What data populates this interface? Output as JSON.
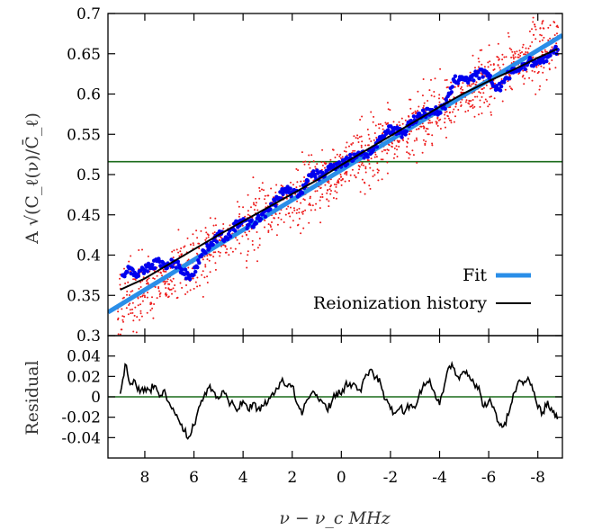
{
  "chart_data": [
    {
      "type": "scatter",
      "xlabel": "ν − ν_c  MHz",
      "ylabel": "A √(C_ℓ(ν)/C̄_ℓ)",
      "xlim": [
        9.5,
        -9.0
      ],
      "ylim": [
        0.3,
        0.7
      ],
      "x_ticks": [
        8,
        6,
        4,
        2,
        0,
        -2,
        -4,
        -6,
        -8
      ],
      "x_tick_labels": [
        "8",
        "6",
        "4",
        "2",
        "0",
        "-2",
        "-4",
        "-6",
        "-8"
      ],
      "y_ticks": [
        0.3,
        0.35,
        0.4,
        0.45,
        0.5,
        0.55,
        0.6,
        0.65,
        0.7
      ],
      "y_tick_labels": [
        "0.3",
        "0.35",
        "0.4",
        "0.45",
        "0.5",
        "0.55",
        "0.6",
        "0.65",
        "0.7"
      ],
      "horizontal_line": {
        "y": 0.516,
        "color": "#1a6b1a"
      },
      "legend": {
        "placement": "bottom-right",
        "entries": [
          "Fit",
          "Reionization history"
        ]
      },
      "series": [
        {
          "name": "Fit",
          "kind": "line",
          "color": "#2a8ee8",
          "x": [
            9.5,
            -9.0
          ],
          "y": [
            0.329,
            0.673
          ]
        },
        {
          "name": "Reionization history",
          "kind": "line",
          "color": "#000000",
          "x": [
            9.0,
            8.0,
            7.0,
            6.0,
            5.0,
            4.0,
            3.0,
            2.0,
            1.0,
            0.0,
            -1.0,
            -2.0,
            -3.0,
            -4.0,
            -5.0,
            -6.0,
            -7.0,
            -8.0,
            -8.8
          ],
          "y": [
            0.357,
            0.371,
            0.389,
            0.407,
            0.425,
            0.442,
            0.459,
            0.476,
            0.493,
            0.512,
            0.53,
            0.548,
            0.566,
            0.584,
            0.601,
            0.616,
            0.63,
            0.645,
            0.656
          ]
        },
        {
          "name": "",
          "kind": "points",
          "color": "#0000ee",
          "x": [
            8.9,
            8.6,
            8.3,
            8.0,
            7.7,
            7.4,
            7.1,
            6.8,
            6.5,
            6.2,
            5.9,
            5.6,
            5.3,
            5.0,
            4.7,
            4.4,
            4.1,
            3.8,
            3.5,
            3.2,
            2.9,
            2.6,
            2.3,
            2.0,
            1.7,
            1.4,
            1.1,
            0.8,
            0.5,
            0.2,
            -0.1,
            -0.4,
            -0.7,
            -1.0,
            -1.3,
            -1.6,
            -1.9,
            -2.2,
            -2.5,
            -2.8,
            -3.1,
            -3.4,
            -3.7,
            -4.0,
            -4.3,
            -4.6,
            -4.9,
            -5.2,
            -5.5,
            -5.8,
            -6.1,
            -6.4,
            -6.7,
            -7.0,
            -7.3,
            -7.6,
            -7.9,
            -8.2,
            -8.5,
            -8.8
          ],
          "y": [
            0.375,
            0.384,
            0.376,
            0.381,
            0.388,
            0.392,
            0.384,
            0.392,
            0.382,
            0.372,
            0.386,
            0.405,
            0.415,
            0.425,
            0.422,
            0.432,
            0.443,
            0.437,
            0.44,
            0.451,
            0.457,
            0.47,
            0.482,
            0.478,
            0.475,
            0.493,
            0.5,
            0.498,
            0.507,
            0.513,
            0.515,
            0.52,
            0.527,
            0.525,
            0.531,
            0.542,
            0.555,
            0.557,
            0.551,
            0.563,
            0.572,
            0.576,
            0.58,
            0.577,
            0.59,
            0.616,
            0.621,
            0.618,
            0.623,
            0.627,
            0.616,
            0.606,
            0.62,
            0.627,
            0.633,
            0.639,
            0.64,
            0.642,
            0.648,
            0.655
          ]
        }
      ]
    },
    {
      "type": "line",
      "ylabel": "Residual",
      "xlim": [
        9.5,
        -9.0
      ],
      "ylim": [
        -0.06,
        0.06
      ],
      "y_ticks": [
        -0.04,
        -0.02,
        0,
        0.02,
        0.04
      ],
      "y_tick_labels": [
        "-0.04",
        "-0.02",
        "0",
        "0.02",
        "0.04"
      ],
      "horizontal_line": {
        "y": 0,
        "color": "#1a6b1a"
      },
      "series": [
        {
          "name": "",
          "kind": "line",
          "color": "#000000",
          "x": [
            9.0,
            8.8,
            8.6,
            8.4,
            8.2,
            8.0,
            7.8,
            7.6,
            7.4,
            7.2,
            7.0,
            6.8,
            6.6,
            6.4,
            6.2,
            6.0,
            5.8,
            5.6,
            5.4,
            5.2,
            5.0,
            4.8,
            4.6,
            4.4,
            4.2,
            4.0,
            3.8,
            3.6,
            3.4,
            3.2,
            3.0,
            2.8,
            2.6,
            2.4,
            2.2,
            2.0,
            1.8,
            1.6,
            1.4,
            1.2,
            1.0,
            0.8,
            0.6,
            0.4,
            0.2,
            0.0,
            -0.2,
            -0.4,
            -0.6,
            -0.8,
            -1.0,
            -1.2,
            -1.4,
            -1.6,
            -1.8,
            -2.0,
            -2.2,
            -2.4,
            -2.6,
            -2.8,
            -3.0,
            -3.2,
            -3.4,
            -3.6,
            -3.8,
            -4.0,
            -4.2,
            -4.4,
            -4.6,
            -4.8,
            -5.0,
            -5.2,
            -5.4,
            -5.6,
            -5.8,
            -6.0,
            -6.2,
            -6.4,
            -6.6,
            -6.8,
            -7.0,
            -7.2,
            -7.4,
            -7.6,
            -7.8,
            -8.0,
            -8.2,
            -8.4,
            -8.6,
            -8.8
          ],
          "y": [
            0.003,
            0.032,
            0.012,
            0.016,
            0.004,
            0.009,
            0.007,
            0.011,
            0.0,
            0.007,
            -0.006,
            -0.015,
            -0.024,
            -0.034,
            -0.039,
            -0.028,
            -0.01,
            0.0,
            0.009,
            0.005,
            -0.002,
            0.006,
            -0.004,
            -0.007,
            -0.012,
            -0.004,
            -0.013,
            -0.006,
            -0.012,
            -0.009,
            -0.006,
            0.004,
            0.008,
            0.018,
            0.01,
            0.011,
            -0.007,
            -0.018,
            -0.003,
            0.004,
            0.002,
            -0.004,
            -0.012,
            -0.006,
            0.004,
            0.002,
            0.015,
            0.009,
            0.011,
            0.005,
            0.022,
            0.027,
            0.019,
            0.013,
            -0.003,
            -0.012,
            -0.016,
            -0.01,
            -0.014,
            -0.008,
            -0.011,
            0.006,
            0.011,
            0.017,
            0.004,
            -0.008,
            0.012,
            0.03,
            0.028,
            0.017,
            0.025,
            0.021,
            0.013,
            0.01,
            -0.01,
            -0.004,
            -0.01,
            -0.025,
            -0.029,
            -0.018,
            0.003,
            0.015,
            0.012,
            0.019,
            0.006,
            -0.011,
            -0.015,
            -0.004,
            -0.015,
            -0.022
          ]
        }
      ]
    }
  ]
}
